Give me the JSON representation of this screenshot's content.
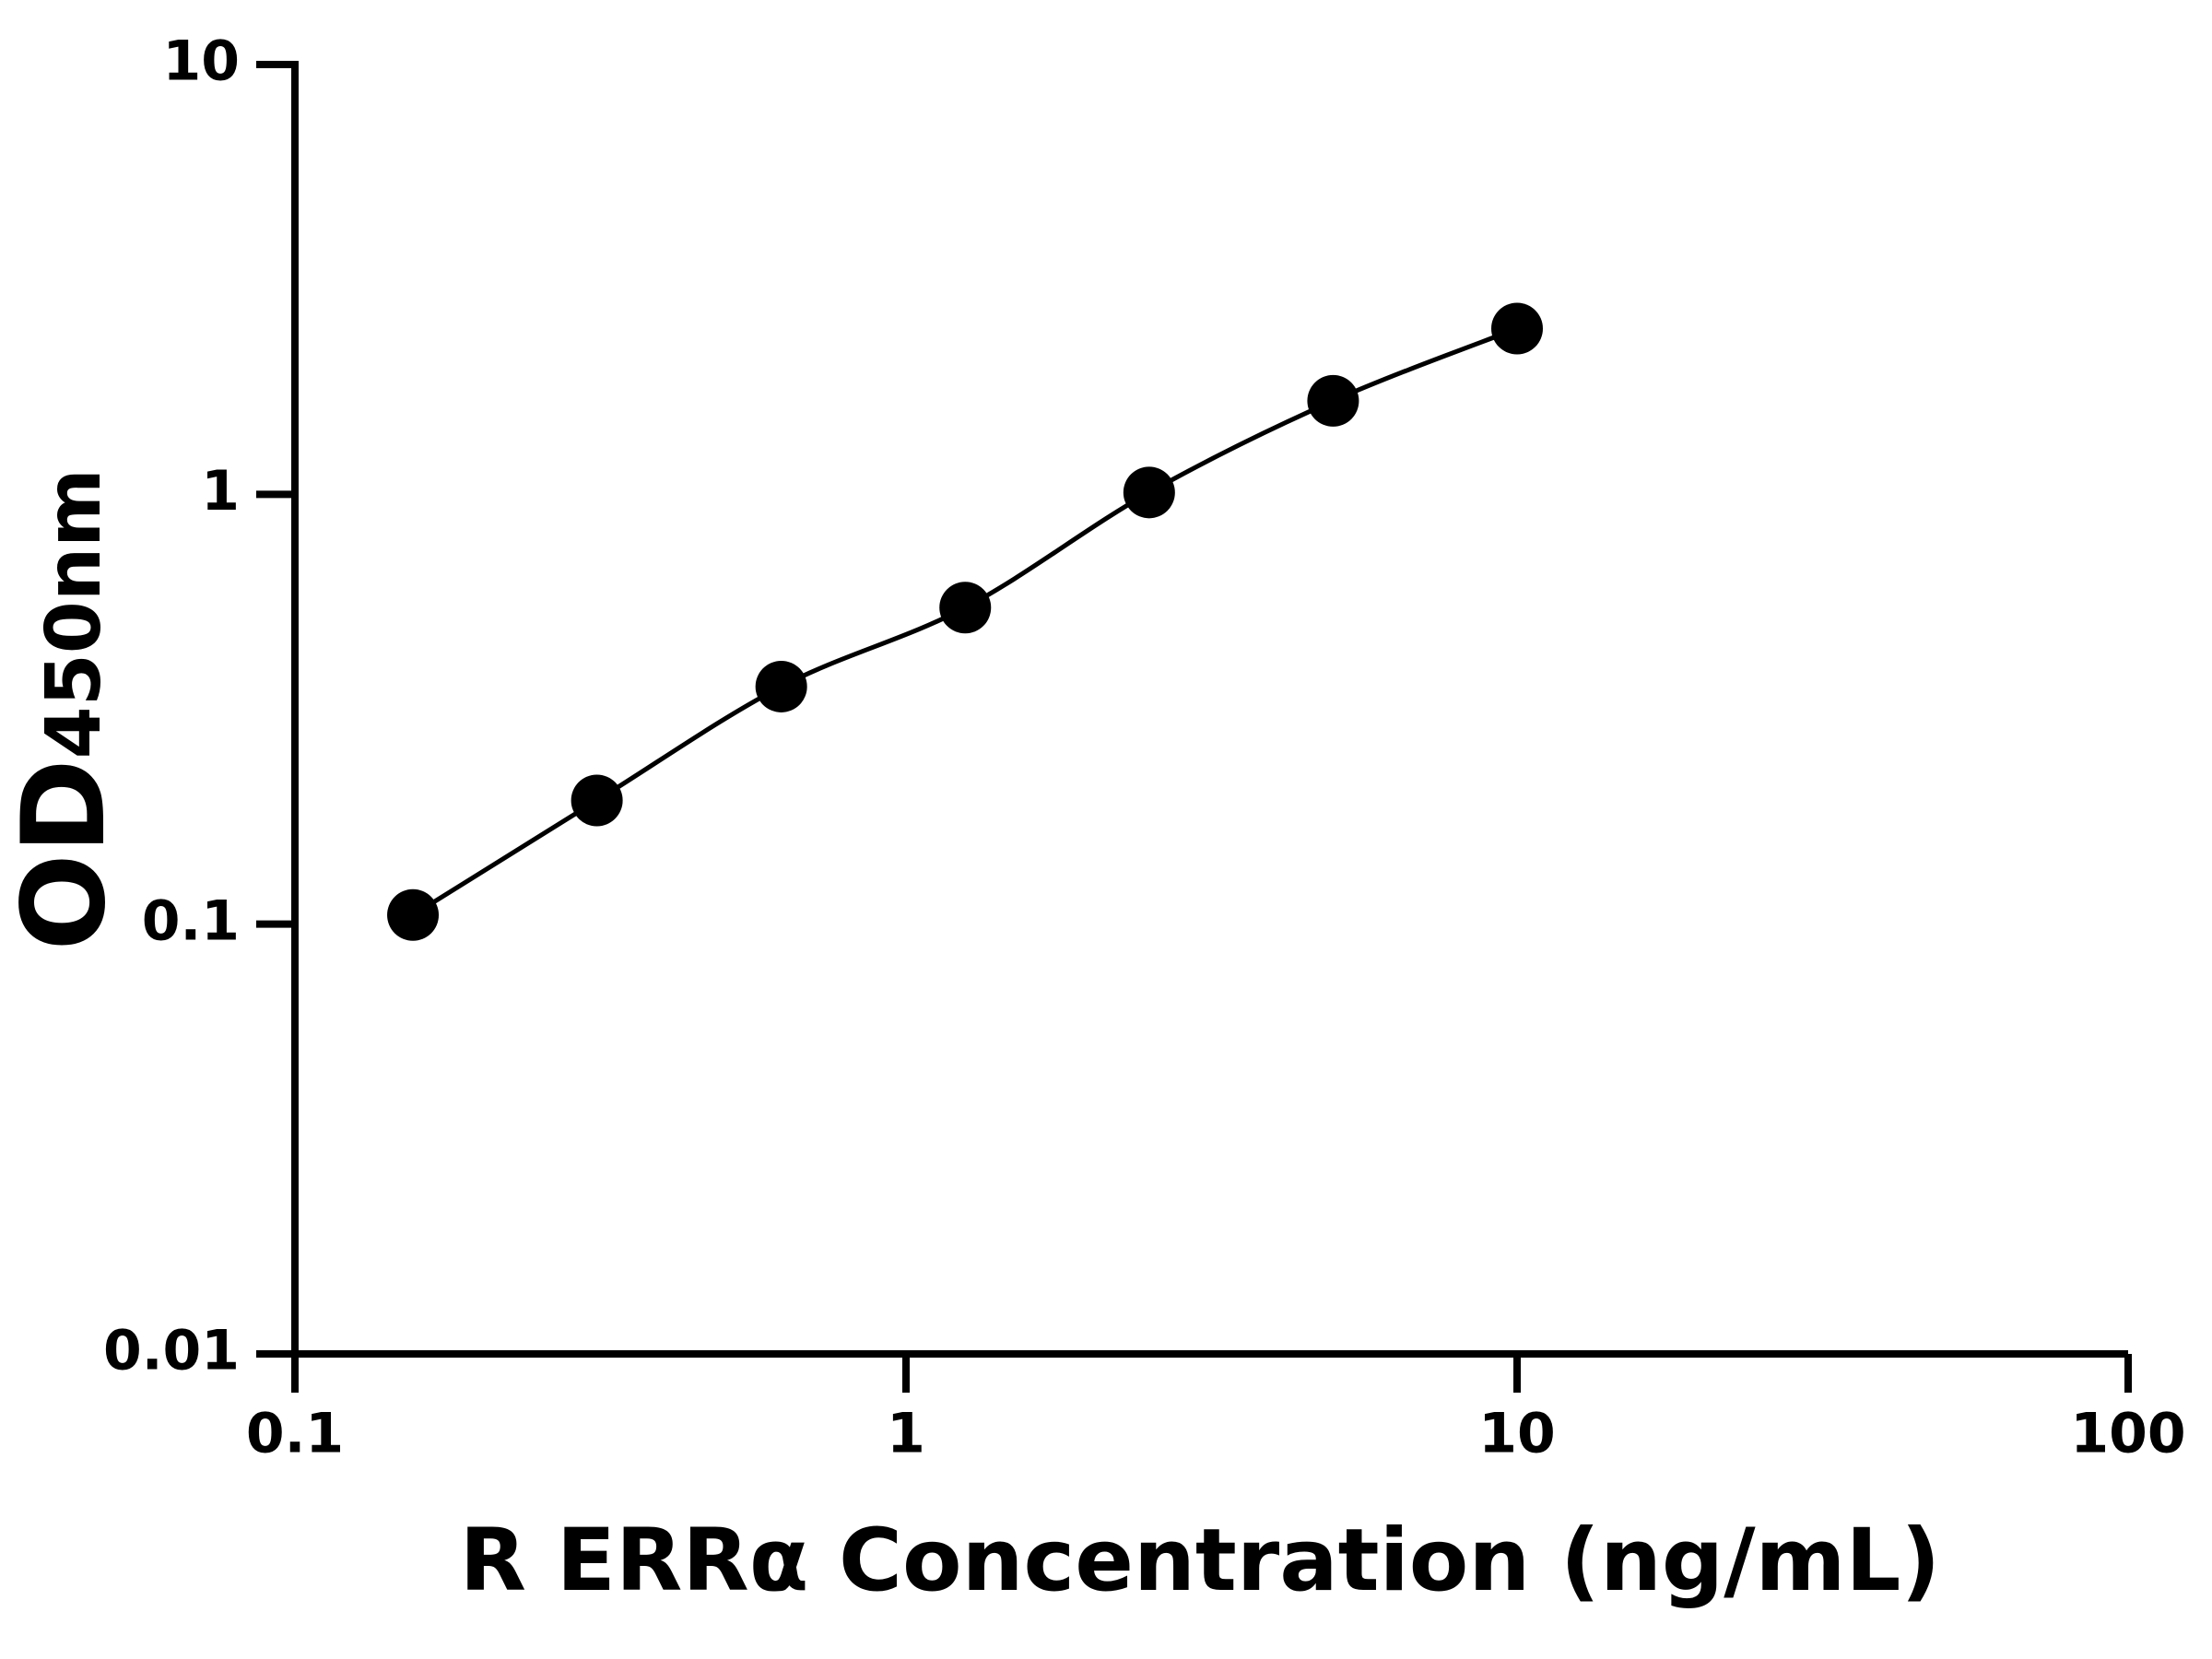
{
  "chart_data": {
    "type": "scatter",
    "x_label": "R ERRα Concentration (ng/mL)",
    "y_label": "OD",
    "y_label_subscript": "450nm",
    "x": [
      0.156,
      0.312,
      0.625,
      1.25,
      2.5,
      5,
      10
    ],
    "series": [
      {
        "color": "#000000",
        "values": [
          0.105,
          0.194,
          0.357,
          0.545,
          1.01,
          1.65,
          2.43
        ]
      }
    ],
    "xscale": "log",
    "yscale": "log",
    "xlim": [
      0.1,
      100
    ],
    "ylim": [
      0.01,
      10
    ],
    "xticks": [
      0.1,
      1,
      10,
      100
    ],
    "yticks": [
      0.01,
      0.1,
      1,
      10
    ],
    "fit_line": true,
    "grid": false
  }
}
